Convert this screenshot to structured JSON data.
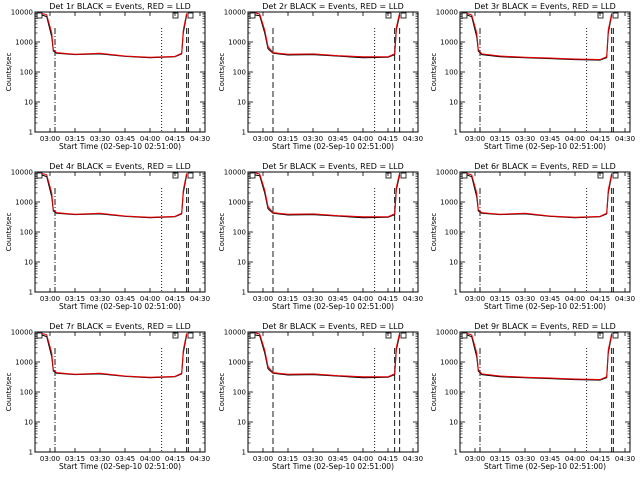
{
  "figure": {
    "background": "#ffffff",
    "colors": {
      "events": "#000000",
      "lld": "#e00000",
      "axes": "#000000"
    }
  },
  "chart_data": [
    {
      "type": "line",
      "title": "Det 1r BLACK = Events, RED = LLD",
      "xlabel": "Start Time (02-Sep-10 02:51:00)",
      "ylabel": "Counts/sec",
      "yscale": "log",
      "ylim": [
        1,
        10000
      ],
      "grid": false,
      "x_tick_labels": [
        "03:00",
        "03:15",
        "03:30",
        "03:45",
        "04:00",
        "04:15",
        "04:30"
      ],
      "y_tick_labels": [
        "1",
        "10",
        "100",
        "1000",
        "10000"
      ],
      "markers": [
        {
          "style": "dash-dot",
          "x": "03:03"
        },
        {
          "style": "dotted",
          "x": "04:07"
        },
        {
          "style": "dashed",
          "x": "04:22"
        },
        {
          "style": "dashed",
          "x": "04:23"
        }
      ],
      "series": [
        {
          "color": "#000000",
          "x": [
            "02:55",
            "02:58",
            "03:01",
            "03:02",
            "03:04",
            "03:15",
            "03:30",
            "03:45",
            "04:00",
            "04:15",
            "04:19",
            "04:20",
            "04:22"
          ],
          "y": [
            8000,
            7000,
            1500,
            500,
            420,
            380,
            400,
            330,
            300,
            320,
            400,
            2000,
            8000
          ]
        },
        {
          "color": "#e00000",
          "x": [
            "02:55",
            "02:58",
            "03:01",
            "03:02",
            "03:04",
            "03:15",
            "03:30",
            "03:45",
            "04:00",
            "04:15",
            "04:19",
            "04:20",
            "04:22"
          ],
          "y": [
            9000,
            8000,
            2000,
            550,
            440,
            390,
            420,
            340,
            310,
            330,
            420,
            2500,
            9000
          ]
        }
      ]
    },
    {
      "type": "line",
      "title": "Det 2r BLACK = Events, RED = LLD",
      "xlabel": "Start Time (02-Sep-10 02:51:00)",
      "ylabel": "Counts/sec",
      "yscale": "log",
      "ylim": [
        1,
        10000
      ],
      "grid": false,
      "x_tick_labels": [
        "03:00",
        "03:15",
        "03:30",
        "03:45",
        "04:00",
        "04:15",
        "04:30"
      ],
      "y_tick_labels": [
        "1",
        "10",
        "100",
        "1000",
        "10000"
      ],
      "markers": [
        {
          "style": "dashed",
          "x": "03:06"
        },
        {
          "style": "dotted",
          "x": "04:07"
        },
        {
          "style": "dashed",
          "x": "04:19"
        },
        {
          "style": "dashed",
          "x": "04:22"
        }
      ],
      "series": [
        {
          "color": "#000000",
          "x": [
            "02:55",
            "02:58",
            "03:01",
            "03:03",
            "03:06",
            "03:15",
            "03:30",
            "03:45",
            "04:00",
            "04:15",
            "04:19",
            "04:20",
            "04:22"
          ],
          "y": [
            8000,
            7500,
            2000,
            600,
            420,
            370,
            380,
            340,
            300,
            310,
            380,
            2500,
            8000
          ]
        },
        {
          "color": "#e00000",
          "x": [
            "02:55",
            "02:58",
            "03:01",
            "03:03",
            "03:06",
            "03:15",
            "03:30",
            "03:45",
            "04:00",
            "04:15",
            "04:19",
            "04:20",
            "04:22"
          ],
          "y": [
            9500,
            8500,
            2500,
            700,
            440,
            390,
            400,
            350,
            320,
            320,
            400,
            3000,
            9500
          ]
        }
      ]
    },
    {
      "type": "line",
      "title": "Det 3r BLACK = Events, RED = LLD",
      "xlabel": "Start Time (02-Sep-10 02:51:00)",
      "ylabel": "Counts/sec",
      "yscale": "log",
      "ylim": [
        1,
        10000
      ],
      "grid": false,
      "x_tick_labels": [
        "03:00",
        "03:15",
        "03:30",
        "03:45",
        "04:00",
        "04:15",
        "04:30"
      ],
      "y_tick_labels": [
        "1",
        "10",
        "100",
        "1000",
        "10000"
      ],
      "markers": [
        {
          "style": "dash-dot",
          "x": "03:03"
        },
        {
          "style": "dotted",
          "x": "04:07"
        },
        {
          "style": "dashed",
          "x": "04:22"
        },
        {
          "style": "dashed",
          "x": "04:23"
        }
      ],
      "series": [
        {
          "color": "#000000",
          "x": [
            "02:55",
            "02:58",
            "03:01",
            "03:02",
            "03:04",
            "03:15",
            "03:30",
            "03:45",
            "04:00",
            "04:15",
            "04:19",
            "04:20",
            "04:22"
          ],
          "y": [
            8000,
            7000,
            1500,
            500,
            380,
            320,
            300,
            280,
            260,
            250,
            300,
            2000,
            8000
          ]
        },
        {
          "color": "#e00000",
          "x": [
            "02:55",
            "02:58",
            "03:01",
            "03:02",
            "03:04",
            "03:15",
            "03:30",
            "03:45",
            "04:00",
            "04:15",
            "04:19",
            "04:20",
            "04:22"
          ],
          "y": [
            9000,
            8000,
            2000,
            550,
            400,
            340,
            310,
            290,
            270,
            260,
            320,
            2500,
            9000
          ]
        }
      ]
    },
    {
      "type": "line",
      "title": "Det 4r BLACK = Events, RED = LLD",
      "xlabel": "Start Time (02-Sep-10 02:51:00)",
      "ylabel": "Counts/sec",
      "yscale": "log",
      "ylim": [
        1,
        10000
      ],
      "grid": false,
      "x_tick_labels": [
        "03:00",
        "03:15",
        "03:30",
        "03:45",
        "04:00",
        "04:15",
        "04:30"
      ],
      "y_tick_labels": [
        "1",
        "10",
        "100",
        "1000",
        "10000"
      ],
      "markers": [
        {
          "style": "dash-dot",
          "x": "03:03"
        },
        {
          "style": "dotted",
          "x": "04:07"
        },
        {
          "style": "dashed",
          "x": "04:22"
        },
        {
          "style": "dashed",
          "x": "04:23"
        }
      ],
      "series": [
        {
          "color": "#000000",
          "x": [
            "02:55",
            "02:58",
            "03:01",
            "03:02",
            "03:04",
            "03:15",
            "03:30",
            "03:45",
            "04:00",
            "04:15",
            "04:19",
            "04:20",
            "04:22"
          ],
          "y": [
            8000,
            7000,
            1500,
            500,
            420,
            380,
            400,
            330,
            300,
            320,
            400,
            2000,
            8000
          ]
        },
        {
          "color": "#e00000",
          "x": [
            "02:55",
            "02:58",
            "03:01",
            "03:02",
            "03:04",
            "03:15",
            "03:30",
            "03:45",
            "04:00",
            "04:15",
            "04:19",
            "04:20",
            "04:22"
          ],
          "y": [
            9000,
            8000,
            2000,
            550,
            440,
            390,
            420,
            340,
            310,
            330,
            420,
            2500,
            9000
          ]
        }
      ]
    },
    {
      "type": "line",
      "title": "Det 5r BLACK = Events, RED = LLD",
      "xlabel": "Start Time (02-Sep-10 02:51:00)",
      "ylabel": "Counts/sec",
      "yscale": "log",
      "ylim": [
        1,
        10000
      ],
      "grid": false,
      "x_tick_labels": [
        "03:00",
        "03:15",
        "03:30",
        "03:45",
        "04:00",
        "04:15",
        "04:30"
      ],
      "y_tick_labels": [
        "1",
        "10",
        "100",
        "1000",
        "10000"
      ],
      "markers": [
        {
          "style": "dashed",
          "x": "03:06"
        },
        {
          "style": "dotted",
          "x": "04:07"
        },
        {
          "style": "dashed",
          "x": "04:19"
        },
        {
          "style": "dashed",
          "x": "04:22"
        }
      ],
      "series": [
        {
          "color": "#000000",
          "x": [
            "02:55",
            "02:58",
            "03:01",
            "03:03",
            "03:06",
            "03:15",
            "03:30",
            "03:45",
            "04:00",
            "04:15",
            "04:19",
            "04:20",
            "04:22"
          ],
          "y": [
            8000,
            7500,
            2000,
            600,
            420,
            370,
            380,
            340,
            300,
            310,
            380,
            2500,
            8000
          ]
        },
        {
          "color": "#e00000",
          "x": [
            "02:55",
            "02:58",
            "03:01",
            "03:03",
            "03:06",
            "03:15",
            "03:30",
            "03:45",
            "04:00",
            "04:15",
            "04:19",
            "04:20",
            "04:22"
          ],
          "y": [
            9500,
            8500,
            2500,
            700,
            440,
            390,
            400,
            350,
            320,
            320,
            400,
            3000,
            9500
          ]
        }
      ]
    },
    {
      "type": "line",
      "title": "Det 6r BLACK = Events, RED = LLD",
      "xlabel": "Start Time (02-Sep-10 02:51:00)",
      "ylabel": "Counts/sec",
      "yscale": "log",
      "ylim": [
        1,
        10000
      ],
      "grid": false,
      "x_tick_labels": [
        "03:00",
        "03:15",
        "03:30",
        "03:45",
        "04:00",
        "04:15",
        "04:30"
      ],
      "y_tick_labels": [
        "1",
        "10",
        "100",
        "1000",
        "10000"
      ],
      "markers": [
        {
          "style": "dash-dot",
          "x": "03:03"
        },
        {
          "style": "dotted",
          "x": "04:07"
        },
        {
          "style": "dashed",
          "x": "04:22"
        },
        {
          "style": "dashed",
          "x": "04:23"
        }
      ],
      "series": [
        {
          "color": "#000000",
          "x": [
            "02:55",
            "02:58",
            "03:01",
            "03:02",
            "03:04",
            "03:15",
            "03:30",
            "03:45",
            "04:00",
            "04:15",
            "04:19",
            "04:20",
            "04:22"
          ],
          "y": [
            8000,
            7000,
            1500,
            500,
            420,
            380,
            400,
            330,
            300,
            320,
            400,
            2000,
            8000
          ]
        },
        {
          "color": "#e00000",
          "x": [
            "02:55",
            "02:58",
            "03:01",
            "03:02",
            "03:04",
            "03:15",
            "03:30",
            "03:45",
            "04:00",
            "04:15",
            "04:19",
            "04:20",
            "04:22"
          ],
          "y": [
            9000,
            8000,
            2000,
            550,
            440,
            390,
            420,
            340,
            310,
            330,
            420,
            2500,
            9000
          ]
        }
      ]
    },
    {
      "type": "line",
      "title": "Det 7r BLACK = Events, RED = LLD",
      "xlabel": "Start Time (02-Sep-10 02:51:00)",
      "ylabel": "Counts/sec",
      "yscale": "log",
      "ylim": [
        1,
        10000
      ],
      "grid": false,
      "x_tick_labels": [
        "03:00",
        "03:15",
        "03:30",
        "03:45",
        "04:00",
        "04:15",
        "04:30"
      ],
      "y_tick_labels": [
        "1",
        "10",
        "100",
        "1000",
        "10000"
      ],
      "markers": [
        {
          "style": "dash-dot",
          "x": "03:03"
        },
        {
          "style": "dotted",
          "x": "04:07"
        },
        {
          "style": "dashed",
          "x": "04:22"
        },
        {
          "style": "dashed",
          "x": "04:23"
        }
      ],
      "series": [
        {
          "color": "#000000",
          "x": [
            "02:55",
            "02:58",
            "03:01",
            "03:02",
            "03:04",
            "03:15",
            "03:30",
            "03:45",
            "04:00",
            "04:15",
            "04:19",
            "04:20",
            "04:22"
          ],
          "y": [
            8000,
            7000,
            1500,
            500,
            420,
            380,
            400,
            330,
            300,
            320,
            400,
            2000,
            8000
          ]
        },
        {
          "color": "#e00000",
          "x": [
            "02:55",
            "02:58",
            "03:01",
            "03:02",
            "03:04",
            "03:15",
            "03:30",
            "03:45",
            "04:00",
            "04:15",
            "04:19",
            "04:20",
            "04:22"
          ],
          "y": [
            9000,
            8000,
            2000,
            550,
            440,
            390,
            420,
            340,
            310,
            330,
            420,
            2500,
            9000
          ]
        }
      ]
    },
    {
      "type": "line",
      "title": "Det 8r BLACK = Events, RED = LLD",
      "xlabel": "Start Time (02-Sep-10 02:51:00)",
      "ylabel": "Counts/sec",
      "yscale": "log",
      "ylim": [
        1,
        10000
      ],
      "grid": false,
      "x_tick_labels": [
        "03:00",
        "03:15",
        "03:30",
        "03:45",
        "04:00",
        "04:15",
        "04:30"
      ],
      "y_tick_labels": [
        "1",
        "10",
        "100",
        "1000",
        "10000"
      ],
      "markers": [
        {
          "style": "dashed",
          "x": "03:06"
        },
        {
          "style": "dotted",
          "x": "04:07"
        },
        {
          "style": "dashed",
          "x": "04:19"
        },
        {
          "style": "dashed",
          "x": "04:22"
        }
      ],
      "series": [
        {
          "color": "#000000",
          "x": [
            "02:55",
            "02:58",
            "03:01",
            "03:03",
            "03:06",
            "03:15",
            "03:30",
            "03:45",
            "04:00",
            "04:15",
            "04:19",
            "04:20",
            "04:22"
          ],
          "y": [
            8000,
            7500,
            2000,
            600,
            420,
            370,
            380,
            340,
            300,
            310,
            380,
            2500,
            8000
          ]
        },
        {
          "color": "#e00000",
          "x": [
            "02:55",
            "02:58",
            "03:01",
            "03:03",
            "03:06",
            "03:15",
            "03:30",
            "03:45",
            "04:00",
            "04:15",
            "04:19",
            "04:20",
            "04:22"
          ],
          "y": [
            9500,
            8500,
            2500,
            700,
            440,
            390,
            400,
            350,
            320,
            320,
            400,
            3000,
            9500
          ]
        }
      ]
    },
    {
      "type": "line",
      "title": "Det 9r BLACK = Events, RED = LLD",
      "xlabel": "Start Time (02-Sep-10 02:51:00)",
      "ylabel": "Counts/sec",
      "yscale": "log",
      "ylim": [
        1,
        10000
      ],
      "grid": false,
      "x_tick_labels": [
        "03:00",
        "03:15",
        "03:30",
        "03:45",
        "04:00",
        "04:15",
        "04:30"
      ],
      "y_tick_labels": [
        "1",
        "10",
        "100",
        "1000",
        "10000"
      ],
      "markers": [
        {
          "style": "dash-dot",
          "x": "03:03"
        },
        {
          "style": "dotted",
          "x": "04:07"
        },
        {
          "style": "dashed",
          "x": "04:22"
        },
        {
          "style": "dashed",
          "x": "04:23"
        }
      ],
      "series": [
        {
          "color": "#000000",
          "x": [
            "02:55",
            "02:58",
            "03:01",
            "03:02",
            "03:04",
            "03:15",
            "03:30",
            "03:45",
            "04:00",
            "04:15",
            "04:19",
            "04:20",
            "04:22"
          ],
          "y": [
            8000,
            7000,
            1500,
            500,
            380,
            320,
            300,
            280,
            260,
            250,
            300,
            2000,
            8000
          ]
        },
        {
          "color": "#e00000",
          "x": [
            "02:55",
            "02:58",
            "03:01",
            "03:02",
            "03:04",
            "03:15",
            "03:30",
            "03:45",
            "04:00",
            "04:15",
            "04:19",
            "04:20",
            "04:22"
          ],
          "y": [
            9000,
            8000,
            2000,
            550,
            400,
            340,
            310,
            290,
            270,
            260,
            320,
            2500,
            9000
          ]
        }
      ]
    }
  ]
}
